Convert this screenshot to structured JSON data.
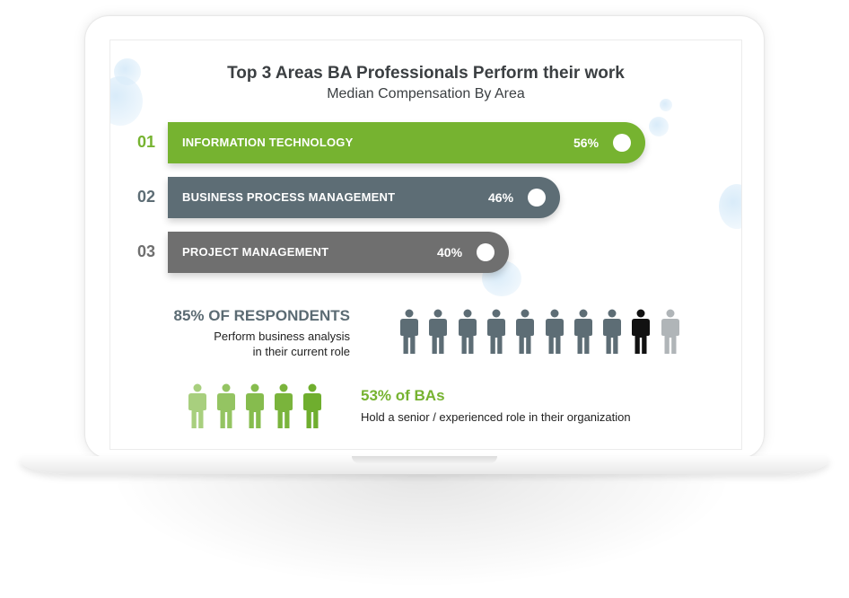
{
  "chart_data": {
    "type": "bar",
    "orientation": "horizontal",
    "title": "Top 3 Areas BA Professionals Perform their work",
    "subtitle": "Median Compensation By Area",
    "ranks": [
      "01",
      "02",
      "03"
    ],
    "categories": [
      "INFORMATION TECHNOLOGY",
      "BUSINESS PROCESS MANAGEMENT",
      "PROJECT MANAGEMENT"
    ],
    "values": [
      56,
      46,
      40
    ],
    "value_labels": [
      "56%",
      "46%",
      "40%"
    ],
    "unit": "%",
    "colors": [
      "#76b330",
      "#5d6d75",
      "#6f6f6f"
    ]
  },
  "stats": {
    "respondents": {
      "headline": "85% OF RESPONDENTS",
      "line1": "Perform business analysis",
      "line2": "in their current role",
      "figures_total": 10,
      "highlight_index": 8,
      "color": "#5d6d75",
      "highlight_color": "#111111",
      "last_color": "#b0b5b8"
    },
    "senior": {
      "headline": "53% of BAs",
      "description": "Hold a senior / experienced role in their organization",
      "figures_total": 5,
      "colors": [
        "#a8cf7e",
        "#94c462",
        "#86bc4e",
        "#7ab43c",
        "#6fae2e"
      ]
    }
  }
}
